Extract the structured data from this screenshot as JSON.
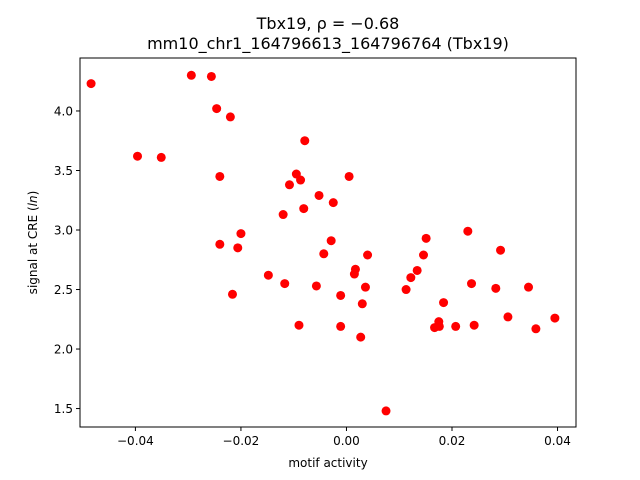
{
  "chart_data": {
    "type": "scatter",
    "title_line1": "Tbx19, ρ = −0.68",
    "title_line2": "mm10_chr1_164796613_164796764 (Tbx19)",
    "xlabel": "motif activity",
    "ylabel": "signal at CRE (ln)",
    "xlim": [
      -0.0505,
      0.0435
    ],
    "ylim": [
      1.345,
      4.445
    ],
    "xticks": [
      -0.04,
      -0.02,
      0.0,
      0.02,
      0.04
    ],
    "xtick_labels": [
      "−0.04",
      "−0.02",
      "0.00",
      "0.02",
      "0.04"
    ],
    "yticks": [
      1.5,
      2.0,
      2.5,
      3.0,
      3.5,
      4.0
    ],
    "ytick_labels": [
      "1.5",
      "2.0",
      "2.5",
      "3.0",
      "3.5",
      "4.0"
    ],
    "grid": false,
    "marker_color": "#ff0000",
    "points": [
      {
        "x": -0.0484,
        "y": 4.23
      },
      {
        "x": -0.0294,
        "y": 4.3
      },
      {
        "x": -0.0256,
        "y": 4.29
      },
      {
        "x": -0.0246,
        "y": 4.02
      },
      {
        "x": -0.022,
        "y": 3.95
      },
      {
        "x": -0.0396,
        "y": 3.62
      },
      {
        "x": -0.0351,
        "y": 3.61
      },
      {
        "x": -0.024,
        "y": 3.45
      },
      {
        "x": -0.0079,
        "y": 3.75
      },
      {
        "x": -0.0095,
        "y": 3.47
      },
      {
        "x": -0.0108,
        "y": 3.38
      },
      {
        "x": -0.0087,
        "y": 3.42
      },
      {
        "x": 0.0005,
        "y": 3.45
      },
      {
        "x": -0.0052,
        "y": 3.29
      },
      {
        "x": -0.0025,
        "y": 3.23
      },
      {
        "x": -0.0081,
        "y": 3.18
      },
      {
        "x": -0.012,
        "y": 3.13
      },
      {
        "x": -0.02,
        "y": 2.97
      },
      {
        "x": -0.024,
        "y": 2.88
      },
      {
        "x": -0.0206,
        "y": 2.85
      },
      {
        "x": -0.0029,
        "y": 2.91
      },
      {
        "x": -0.0043,
        "y": 2.8
      },
      {
        "x": 0.004,
        "y": 2.79
      },
      {
        "x": 0.023,
        "y": 2.99
      },
      {
        "x": 0.0151,
        "y": 2.93
      },
      {
        "x": 0.0146,
        "y": 2.79
      },
      {
        "x": 0.0292,
        "y": 2.83
      },
      {
        "x": 0.0017,
        "y": 2.67
      },
      {
        "x": 0.0015,
        "y": 2.63
      },
      {
        "x": -0.0148,
        "y": 2.62
      },
      {
        "x": 0.0134,
        "y": 2.66
      },
      {
        "x": 0.0122,
        "y": 2.6
      },
      {
        "x": -0.0117,
        "y": 2.55
      },
      {
        "x": -0.0057,
        "y": 2.53
      },
      {
        "x": 0.0036,
        "y": 2.52
      },
      {
        "x": 0.0237,
        "y": 2.55
      },
      {
        "x": 0.0283,
        "y": 2.51
      },
      {
        "x": 0.0345,
        "y": 2.52
      },
      {
        "x": 0.0113,
        "y": 2.5
      },
      {
        "x": -0.0216,
        "y": 2.46
      },
      {
        "x": -0.0011,
        "y": 2.45
      },
      {
        "x": 0.003,
        "y": 2.38
      },
      {
        "x": 0.0184,
        "y": 2.39
      },
      {
        "x": 0.0306,
        "y": 2.27
      },
      {
        "x": 0.0395,
        "y": 2.26
      },
      {
        "x": 0.0175,
        "y": 2.23
      },
      {
        "x": -0.009,
        "y": 2.2
      },
      {
        "x": -0.0011,
        "y": 2.19
      },
      {
        "x": 0.0167,
        "y": 2.18
      },
      {
        "x": 0.0176,
        "y": 2.19
      },
      {
        "x": 0.0207,
        "y": 2.19
      },
      {
        "x": 0.0242,
        "y": 2.2
      },
      {
        "x": 0.0359,
        "y": 2.17
      },
      {
        "x": 0.0027,
        "y": 2.1
      },
      {
        "x": 0.0075,
        "y": 1.48
      }
    ]
  }
}
